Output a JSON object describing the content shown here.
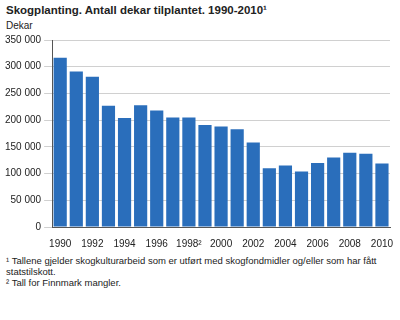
{
  "chart_data": {
    "type": "bar",
    "title": "Skogplanting. Antall dekar tilplantet. 1990-2010¹",
    "ylabel": "Dekar",
    "categories": [
      "1990",
      null,
      "1992",
      null,
      "1994",
      null,
      "1996",
      null,
      "1998²",
      null,
      "2000",
      null,
      "2002",
      null,
      "2004",
      null,
      "2006",
      null,
      "2008",
      null,
      "2010"
    ],
    "values": [
      317000,
      291000,
      281000,
      227000,
      204000,
      228000,
      218000,
      205000,
      205000,
      191000,
      188000,
      183000,
      158000,
      110000,
      115000,
      104000,
      120000,
      130000,
      139000,
      137000,
      119000
    ],
    "color": "#2a6ebb",
    "ylim": [
      0,
      350000
    ],
    "yticks": [
      0,
      {
        "value": 50000,
        "label": "50 000"
      },
      {
        "value": 100000,
        "label": "100 000"
      },
      {
        "value": 150000,
        "label": "150 000"
      },
      {
        "value": 200000,
        "label": "200 000"
      },
      {
        "value": 250000,
        "label": "250 000"
      },
      {
        "value": 300000,
        "label": "300 000"
      },
      {
        "value": 350000,
        "label": "350 000"
      }
    ],
    "grid": true,
    "annotations": [
      "¹ Tallene gjelder skogkulturarbeid som er utført med skogfondmidler og/eller som har fått statstilskott.",
      "² Tall for Finnmark mangler."
    ]
  }
}
